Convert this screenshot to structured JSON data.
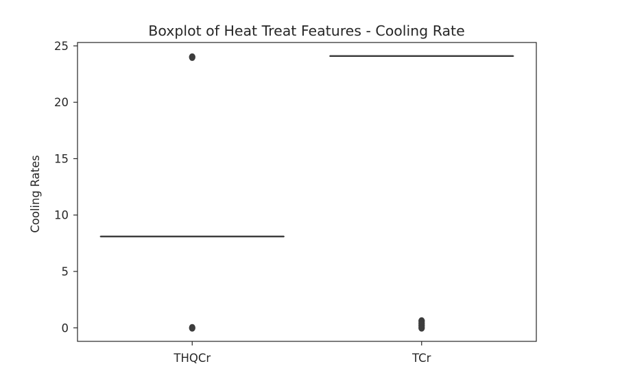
{
  "chart_data": {
    "type": "box",
    "title": "Boxplot of Heat Treat Features - Cooling Rate",
    "xlabel": "",
    "ylabel": "Cooling Rates",
    "categories": [
      "THQCr",
      "TCr"
    ],
    "ylim": [
      -1.2,
      25.3
    ],
    "yticks": [
      0,
      5,
      10,
      15,
      20,
      25
    ],
    "grid": false,
    "colors": {
      "median": "#3d3d3d",
      "outlier": "#3d3d3d",
      "spine": "#262626",
      "background": "#ffffff"
    },
    "boxes": [
      {
        "category": "THQCr",
        "q1": 8.1,
        "median": 8.1,
        "q3": 8.1,
        "whisker_low": 8.1,
        "whisker_high": 8.1,
        "outliers": [
          24,
          0
        ]
      },
      {
        "category": "TCr",
        "q1": 24.1,
        "median": 24.1,
        "q3": 24.1,
        "whisker_low": 24.1,
        "whisker_high": 24.1,
        "outliers": [
          0.6,
          0.4,
          0.2,
          0
        ]
      }
    ]
  }
}
